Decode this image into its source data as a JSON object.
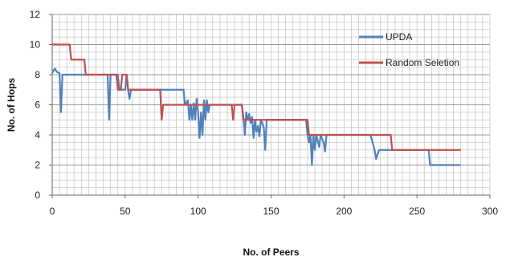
{
  "chart_data": {
    "type": "line",
    "title": "",
    "xlabel": "No. of Peers",
    "ylabel": "No. of Hops",
    "xlim": [
      0,
      300
    ],
    "ylim": [
      0,
      12
    ],
    "x_ticks": [
      0,
      50,
      100,
      150,
      200,
      250,
      300
    ],
    "y_ticks": [
      0,
      2,
      4,
      6,
      8,
      10,
      12
    ],
    "grid": "major and minor horizontal and vertical gridlines",
    "legend_position": "top-right",
    "series": [
      {
        "name": "UPDA",
        "color": "#4f81bd",
        "points": [
          [
            0,
            8.1
          ],
          [
            1,
            8.3
          ],
          [
            2,
            8.4
          ],
          [
            3,
            8.2
          ],
          [
            5,
            8.1
          ],
          [
            6,
            5.5
          ],
          [
            7,
            8.0
          ],
          [
            20,
            8.0
          ],
          [
            38,
            8.0
          ],
          [
            39,
            5.0
          ],
          [
            40,
            8.0
          ],
          [
            45,
            8.0
          ],
          [
            46,
            7.0
          ],
          [
            50,
            7.0
          ],
          [
            51,
            8.0
          ],
          [
            52,
            7.0
          ],
          [
            53,
            6.4
          ],
          [
            54,
            7.0
          ],
          [
            90,
            7.0
          ],
          [
            91,
            6.0
          ],
          [
            93,
            6.3
          ],
          [
            94,
            5.0
          ],
          [
            95,
            6.0
          ],
          [
            96,
            5.0
          ],
          [
            97,
            6.1
          ],
          [
            98,
            5.0
          ],
          [
            99,
            6.4
          ],
          [
            100,
            5.5
          ],
          [
            101,
            3.8
          ],
          [
            102,
            5.5
          ],
          [
            103,
            4.0
          ],
          [
            104,
            6.3
          ],
          [
            105,
            5.0
          ],
          [
            106,
            6.3
          ],
          [
            107,
            5.5
          ],
          [
            108,
            6.0
          ],
          [
            130,
            6.0
          ],
          [
            131,
            5.2
          ],
          [
            132,
            4.0
          ],
          [
            133,
            5.5
          ],
          [
            134,
            5.0
          ],
          [
            135,
            5.4
          ],
          [
            136,
            4.8
          ],
          [
            137,
            5.2
          ],
          [
            138,
            3.8
          ],
          [
            139,
            5.0
          ],
          [
            140,
            4.2
          ],
          [
            141,
            4.6
          ],
          [
            142,
            3.9
          ],
          [
            143,
            5.0
          ],
          [
            145,
            4.5
          ],
          [
            146,
            3.0
          ],
          [
            147,
            5.0
          ],
          [
            174,
            5.0
          ],
          [
            175,
            4.0
          ],
          [
            176,
            3.5
          ],
          [
            177,
            4.0
          ],
          [
            178,
            2.0
          ],
          [
            179,
            4.0
          ],
          [
            180,
            3.0
          ],
          [
            181,
            4.0
          ],
          [
            183,
            3.2
          ],
          [
            184,
            4.0
          ],
          [
            186,
            3.5
          ],
          [
            187,
            2.9
          ],
          [
            188,
            4.0
          ],
          [
            218,
            4.0
          ],
          [
            219,
            3.7
          ],
          [
            221,
            3.0
          ],
          [
            222,
            2.4
          ],
          [
            223,
            2.7
          ],
          [
            224,
            3.0
          ],
          [
            258,
            3.0
          ],
          [
            259,
            2.0
          ],
          [
            280,
            2.0
          ]
        ]
      },
      {
        "name": "Random Seletion",
        "color": "#c0504d",
        "points": [
          [
            0,
            10.0
          ],
          [
            12,
            10.0
          ],
          [
            13,
            9.0
          ],
          [
            22,
            9.0
          ],
          [
            23,
            8.0
          ],
          [
            44,
            8.0
          ],
          [
            45,
            7.0
          ],
          [
            47,
            7.0
          ],
          [
            48,
            8.0
          ],
          [
            51,
            8.0
          ],
          [
            52,
            7.0
          ],
          [
            74,
            7.0
          ],
          [
            75,
            5.0
          ],
          [
            76,
            6.0
          ],
          [
            123,
            6.0
          ],
          [
            124,
            5.0
          ],
          [
            125,
            6.0
          ],
          [
            130,
            6.0
          ],
          [
            131,
            5.0
          ],
          [
            175,
            5.0
          ],
          [
            176,
            4.0
          ],
          [
            232,
            4.0
          ],
          [
            233,
            3.0
          ],
          [
            280,
            3.0
          ]
        ]
      }
    ]
  }
}
